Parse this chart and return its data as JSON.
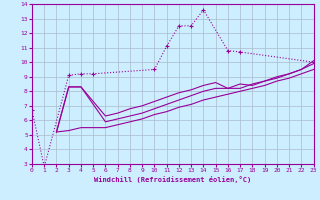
{
  "xlabel": "Windchill (Refroidissement éolien,°C)",
  "bg_color": "#cceeff",
  "line_color": "#990099",
  "grid_color": "#aabbcc",
  "xlim": [
    0,
    23
  ],
  "ylim": [
    3,
    14
  ],
  "xticks": [
    0,
    1,
    2,
    3,
    4,
    5,
    6,
    7,
    8,
    9,
    10,
    11,
    12,
    13,
    14,
    15,
    16,
    17,
    18,
    19,
    20,
    21,
    22,
    23
  ],
  "yticks": [
    3,
    4,
    5,
    6,
    7,
    8,
    9,
    10,
    11,
    12,
    13,
    14
  ],
  "marked_line": {
    "x": [
      0,
      1,
      3,
      4,
      5,
      10,
      11,
      12,
      13,
      14,
      16,
      17,
      23
    ],
    "y": [
      6.7,
      2.8,
      9.1,
      9.2,
      9.2,
      9.5,
      11.1,
      12.5,
      12.5,
      13.6,
      10.8,
      10.7,
      10.0
    ]
  },
  "solid_line1": {
    "x": [
      2,
      3,
      4,
      6,
      7,
      8,
      9,
      10,
      11,
      12,
      13,
      14,
      15,
      16,
      17,
      18,
      19,
      20,
      21,
      22,
      23
    ],
    "y": [
      5.2,
      8.3,
      8.3,
      6.3,
      6.5,
      6.8,
      7.0,
      7.3,
      7.6,
      7.9,
      8.1,
      8.4,
      8.6,
      8.2,
      8.5,
      8.4,
      8.7,
      8.9,
      9.2,
      9.5,
      10.1
    ]
  },
  "solid_line2": {
    "x": [
      2,
      3,
      4,
      6,
      7,
      8,
      9,
      10,
      11,
      12,
      13,
      14,
      15,
      16,
      17,
      18,
      19,
      20,
      21,
      22,
      23
    ],
    "y": [
      5.2,
      8.3,
      8.3,
      5.9,
      6.1,
      6.3,
      6.5,
      6.8,
      7.1,
      7.4,
      7.7,
      8.0,
      8.2,
      8.2,
      8.2,
      8.5,
      8.7,
      9.0,
      9.2,
      9.5,
      9.9
    ]
  },
  "solid_line3": {
    "x": [
      2,
      3,
      4,
      6,
      7,
      8,
      9,
      10,
      11,
      12,
      13,
      14,
      15,
      16,
      17,
      18,
      19,
      20,
      21,
      22,
      23
    ],
    "y": [
      5.2,
      5.3,
      5.5,
      5.5,
      5.7,
      5.9,
      6.1,
      6.4,
      6.6,
      6.9,
      7.1,
      7.4,
      7.6,
      7.8,
      8.0,
      8.2,
      8.4,
      8.7,
      8.9,
      9.2,
      9.5
    ]
  }
}
